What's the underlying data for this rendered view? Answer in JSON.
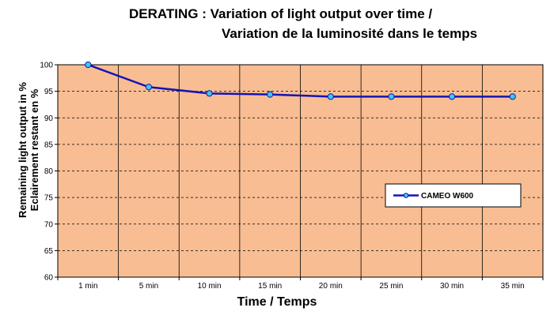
{
  "chart_data": {
    "type": "line",
    "title_line1": "DERATING : Variation of light output over time /",
    "title_line2": "Variation de la luminosité dans le temps",
    "xlabel": "Time / Temps",
    "ylabel_line1": "Remaining light output in %",
    "ylabel_line2": "Eclairement restant en %",
    "categories": [
      "1 min",
      "5 min",
      "10 min",
      "15 min",
      "20 min",
      "25 min",
      "30 min",
      "35 min"
    ],
    "ylim": [
      60,
      100
    ],
    "yticks": [
      60,
      65,
      70,
      75,
      80,
      85,
      90,
      95,
      100
    ],
    "grid": true,
    "legend_position": "right",
    "series": [
      {
        "name": "CAMEO W600",
        "values": [
          100,
          95.8,
          94.6,
          94.4,
          94.0,
          94.0,
          94.0,
          94.0
        ]
      }
    ],
    "colors": {
      "plot_background": "#F8BD92",
      "line": "#1414B4",
      "marker_fill": "#3CC8F0",
      "marker_stroke": "#1414B4",
      "grid": "#000000"
    }
  }
}
